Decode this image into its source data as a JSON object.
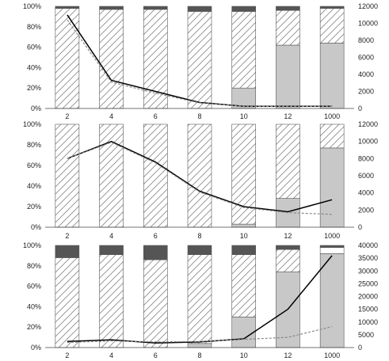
{
  "colors": {
    "dark": "#555555",
    "hatch": "#888888",
    "gray": "#c8c8c8",
    "solid_line": "#000000",
    "dashed_line": "#888888",
    "bar_border": "#555555"
  },
  "chart_data": [
    {
      "type": "bar",
      "stacked": true,
      "categories": [
        "2",
        "4",
        "6",
        "8",
        "10",
        "12",
        "1000"
      ],
      "ylim": [
        0,
        100
      ],
      "y_ticks": [
        "0%",
        "20%",
        "40%",
        "60%",
        "80%",
        "100%"
      ],
      "series": [
        {
          "pattern": "gray",
          "values": [
            0,
            0,
            0,
            0,
            20,
            62,
            64
          ]
        },
        {
          "pattern": "hatch",
          "values": [
            98,
            97,
            97,
            95,
            75,
            34,
            34
          ]
        },
        {
          "pattern": "white",
          "values": [
            0,
            0,
            0,
            0,
            0,
            0,
            0
          ]
        },
        {
          "pattern": "dark",
          "values": [
            2,
            3,
            3,
            5,
            5,
            4,
            2
          ]
        }
      ],
      "y2lim": [
        0,
        12000
      ],
      "y2_ticks": [
        "0",
        "2000",
        "4000",
        "6000",
        "8000",
        "10000",
        "12000"
      ],
      "lines": [
        {
          "style": "solid",
          "values": [
            11000,
            3300,
            2000,
            700,
            250,
            250,
            250
          ]
        },
        {
          "style": "dashed",
          "values": [
            10400,
            3100,
            1800,
            650,
            250,
            250,
            250
          ]
        }
      ]
    },
    {
      "type": "bar",
      "stacked": true,
      "categories": [
        "2",
        "4",
        "6",
        "8",
        "10",
        "12",
        "1000"
      ],
      "ylim": [
        0,
        100
      ],
      "y_ticks": [
        "0%",
        "20%",
        "40%",
        "60%",
        "80%",
        "100%"
      ],
      "series": [
        {
          "pattern": "gray",
          "values": [
            0,
            0,
            0,
            0,
            3,
            28,
            77
          ]
        },
        {
          "pattern": "hatch",
          "values": [
            100,
            100,
            100,
            100,
            97,
            72,
            23
          ]
        },
        {
          "pattern": "white",
          "values": [
            0,
            0,
            0,
            0,
            0,
            0,
            0
          ]
        },
        {
          "pattern": "dark",
          "values": [
            0,
            0,
            0,
            0,
            0,
            0,
            0
          ]
        }
      ],
      "y2lim": [
        0,
        12000
      ],
      "y2_ticks": [
        "0",
        "2000",
        "4000",
        "6000",
        "8000",
        "10000",
        "12000"
      ],
      "lines": [
        {
          "style": "solid",
          "values": [
            8000,
            10000,
            7600,
            4200,
            2400,
            1800,
            3200
          ]
        },
        {
          "style": "dashed",
          "values": [
            8000,
            9900,
            7500,
            4100,
            2300,
            1700,
            1500
          ]
        }
      ]
    },
    {
      "type": "bar",
      "stacked": true,
      "categories": [
        "2",
        "4",
        "6",
        "8",
        "10",
        "12",
        "1000"
      ],
      "ylim": [
        0,
        100
      ],
      "y_ticks": [
        "0%",
        "20%",
        "40%",
        "60%",
        "80%",
        "100%"
      ],
      "series": [
        {
          "pattern": "gray",
          "values": [
            0,
            0,
            0,
            4,
            30,
            74,
            92
          ]
        },
        {
          "pattern": "hatch",
          "values": [
            88,
            91,
            86,
            87,
            61,
            22,
            0
          ]
        },
        {
          "pattern": "white",
          "values": [
            0,
            0,
            0,
            0,
            0,
            0,
            6
          ]
        },
        {
          "pattern": "dark",
          "values": [
            12,
            9,
            14,
            9,
            9,
            4,
            2
          ]
        }
      ],
      "y2lim": [
        0,
        40000
      ],
      "y2_ticks": [
        "0",
        "5000",
        "10000",
        "15000",
        "20000",
        "25000",
        "30000",
        "35000",
        "40000"
      ],
      "lines": [
        {
          "style": "solid",
          "values": [
            2400,
            3000,
            1800,
            2200,
            3400,
            15000,
            36000
          ]
        },
        {
          "style": "dashed",
          "values": [
            2000,
            2600,
            2200,
            2400,
            3200,
            4000,
            8200
          ]
        }
      ]
    }
  ]
}
